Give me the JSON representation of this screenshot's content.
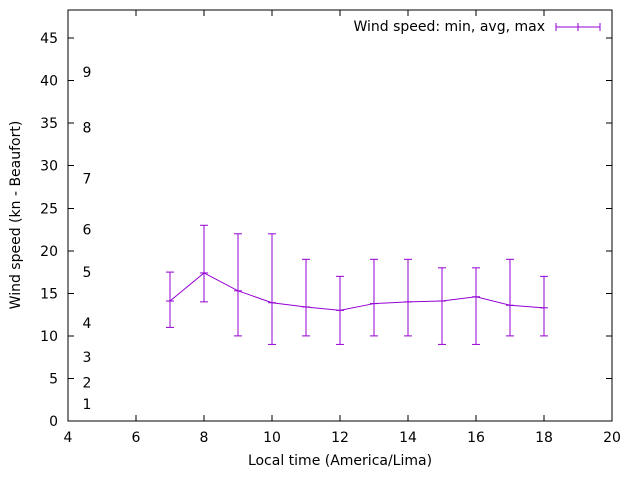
{
  "chart_data": {
    "type": "line",
    "style": "errorbars",
    "legend": {
      "label": "Wind speed: min, avg, max",
      "position": "top-right-inside"
    },
    "xlabel": "Local time (America/Lima)",
    "ylabel": "Wind speed (kn - Beaufort)",
    "xlim": [
      4,
      20
    ],
    "ylim": [
      0,
      48.3
    ],
    "xticks": [
      4,
      6,
      8,
      10,
      12,
      14,
      16,
      18,
      20
    ],
    "yticks": [
      0,
      5,
      10,
      15,
      20,
      25,
      30,
      35,
      40,
      45
    ],
    "beaufort_scale_labels": [
      {
        "label": "1",
        "kn": 2
      },
      {
        "label": "2",
        "kn": 4.5
      },
      {
        "label": "3",
        "kn": 7.5
      },
      {
        "label": "4",
        "kn": 11.5
      },
      {
        "label": "5",
        "kn": 17.5
      },
      {
        "label": "6",
        "kn": 22.5
      },
      {
        "label": "7",
        "kn": 28.5
      },
      {
        "label": "8",
        "kn": 34.5
      },
      {
        "label": "9",
        "kn": 41
      }
    ],
    "x": [
      7,
      8,
      9,
      10,
      11,
      12,
      13,
      14,
      15,
      16,
      17,
      18
    ],
    "series": [
      {
        "name": "avg",
        "values": [
          14.1,
          17.4,
          15.3,
          13.9,
          13.4,
          13.0,
          13.8,
          14.0,
          14.1,
          14.6,
          13.6,
          13.3
        ]
      },
      {
        "name": "min",
        "values": [
          11,
          14,
          10,
          9,
          10,
          9,
          10,
          10,
          9,
          9,
          10,
          10
        ]
      },
      {
        "name": "max",
        "values": [
          17.5,
          23,
          22,
          22,
          19,
          17,
          19,
          19,
          18,
          18,
          19,
          17
        ]
      }
    ],
    "series_color": "#9400d3",
    "grid": false,
    "background_color": "#ffffff"
  }
}
